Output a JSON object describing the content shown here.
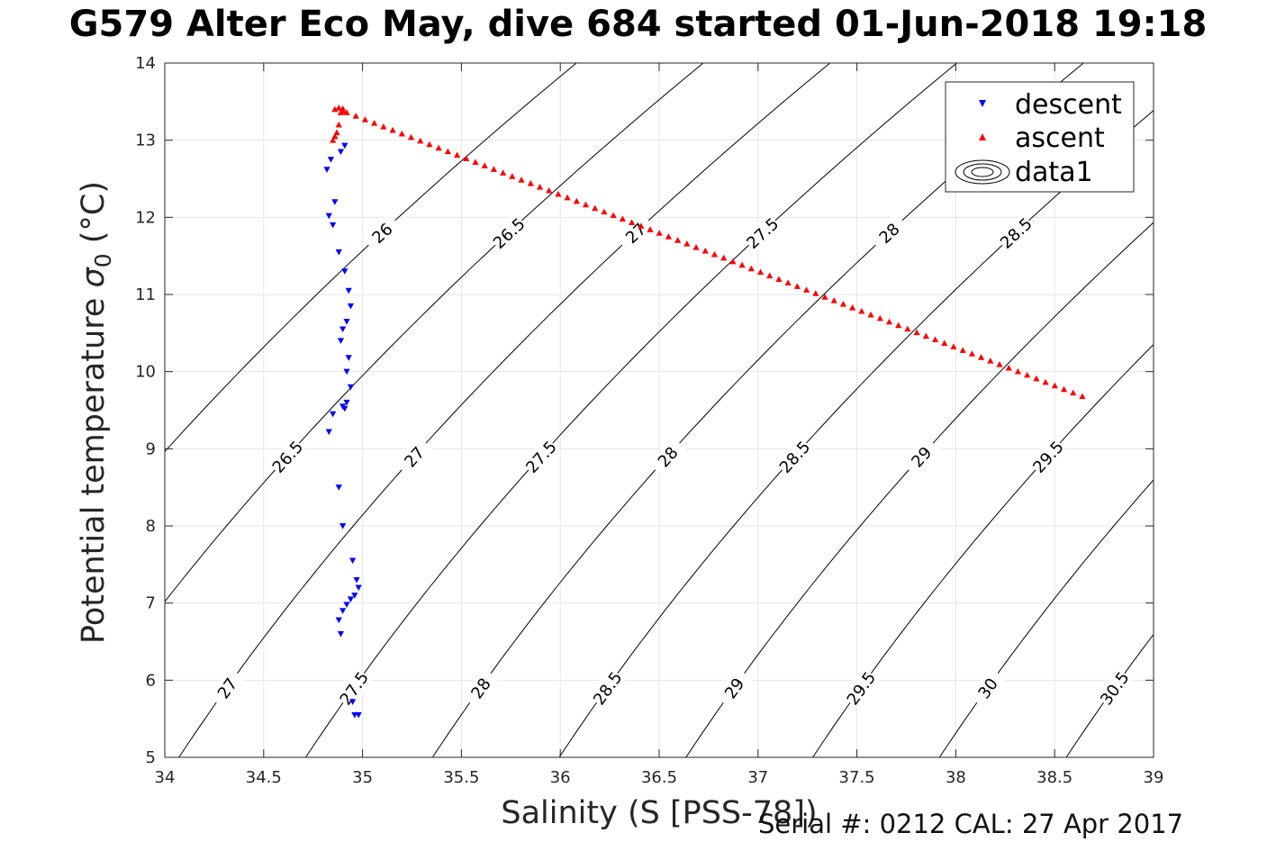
{
  "title": "G579 Alter Eco May, dive 684 started 01-Jun-2018 19:18",
  "footer": "Serial #: 0212  CAL: 27 Apr 2017",
  "chart_data": {
    "type": "scatter",
    "xlabel": "Salinity (S [PSS-78])",
    "ylabel": "Potential temperature σ₀ (°C)",
    "ylabel_main": "Potential temperature",
    "ylabel_sigma": "σ",
    "ylabel_sub": "0",
    "ylabel_unit": "(°C)",
    "xlim": [
      34,
      39
    ],
    "ylim": [
      5,
      14
    ],
    "xticks": [
      34,
      34.5,
      35,
      35.5,
      36,
      36.5,
      37,
      37.5,
      38,
      38.5,
      39
    ],
    "yticks": [
      5,
      6,
      7,
      8,
      9,
      10,
      11,
      12,
      13,
      14
    ],
    "grid": true,
    "legend_position": "top-right",
    "legend": [
      "descent",
      "ascent",
      "data1"
    ],
    "colors": {
      "descent": "#0000ff",
      "ascent": "#ff0000",
      "contour": "#000000"
    },
    "series": [
      {
        "name": "descent",
        "marker": "triangle-down",
        "x": [
          34.91,
          34.89,
          34.84,
          34.82,
          34.86,
          34.83,
          34.85,
          34.88,
          34.91,
          34.93,
          34.94,
          34.92,
          34.9,
          34.89,
          34.93,
          34.92,
          34.94,
          34.92,
          34.9,
          34.91,
          34.85,
          34.83,
          34.88,
          34.9,
          34.95,
          34.97,
          34.98,
          34.96,
          34.94,
          34.92,
          34.9,
          34.88,
          34.89,
          34.95,
          34.96,
          34.98
        ],
        "y": [
          12.93,
          12.85,
          12.75,
          12.62,
          12.2,
          12.02,
          11.9,
          11.55,
          11.3,
          11.05,
          10.85,
          10.65,
          10.55,
          10.4,
          10.18,
          10.0,
          9.8,
          9.6,
          9.55,
          9.52,
          9.45,
          9.22,
          8.5,
          8.0,
          7.55,
          7.3,
          7.2,
          7.1,
          7.05,
          6.98,
          6.9,
          6.78,
          6.6,
          5.72,
          5.55,
          5.55
        ]
      },
      {
        "name": "ascent",
        "marker": "triangle-up",
        "x": [
          34.85,
          34.86,
          34.87,
          34.88,
          34.89,
          34.9,
          34.86,
          34.88,
          34.9,
          34.92
        ],
        "y": [
          13.0,
          13.05,
          13.1,
          13.2,
          13.36,
          13.41,
          13.4,
          13.42,
          13.38,
          13.36
        ],
        "x_end": 38.64,
        "y_end": 9.68,
        "count": 80
      },
      {
        "name": "data1",
        "type": "contour",
        "levels": [
          26,
          26.5,
          27,
          27.5,
          28,
          28.5,
          29,
          29.5,
          30,
          30.5
        ]
      }
    ]
  }
}
